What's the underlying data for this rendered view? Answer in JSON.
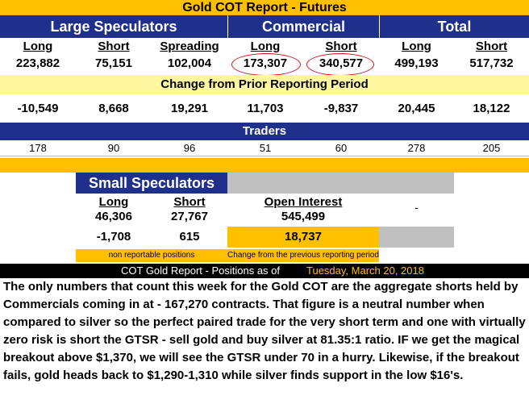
{
  "title": "Gold COT Report - Futures",
  "groups": {
    "large": "Large Speculators",
    "commercial": "Commercial",
    "total": "Total"
  },
  "columns": [
    "Long",
    "Short",
    "Spreading",
    "Long",
    "Short",
    "Long",
    "Short"
  ],
  "positions": [
    "223,882",
    "75,151",
    "102,004",
    "173,307",
    "340,577",
    "499,193",
    "517,732"
  ],
  "change_header": "Change from Prior Reporting Period",
  "changes": [
    "-10,549",
    "8,668",
    "19,291",
    "11,703",
    "-9,837",
    "20,445",
    "18,122"
  ],
  "traders_header": "Traders",
  "traders": [
    "178",
    "90",
    "96",
    "51",
    "60",
    "278",
    "205"
  ],
  "small": {
    "title": "Small Speculators",
    "long_label": "Long",
    "short_label": "Short",
    "long": "46,306",
    "short": "27,767",
    "long_change": "-1,708",
    "short_change": "615",
    "oi_label": "Open Interest",
    "oi": "545,499",
    "oi_change": "18,737",
    "dash": "-",
    "note_nonreportable": "non reportable positions",
    "note_change": "Change from the previous reporting period"
  },
  "footer": {
    "label": "COT Gold Report - Positions as of",
    "date": "Tuesday, March 20, 2018"
  },
  "commentary": "The only numbers that count this week for the Gold COT are the aggregate shorts held by Commercials coming in at - 167,270 contracts. That figure is a neutral number when compared to silver so the perfect paired trade for the very short term and one with virtually zero risk is short the GTSR - sell gold and buy silver at 81.35:1 ratio. IF we get the magical breakout above $1,370, we will see the GTSR under 70 in a hurry. Likewise, if the breakout fails, gold heads back to $1,290-1,310 while silver finds support in the low $16's.",
  "colors": {
    "navy": "#1f2f8c",
    "gold": "#ffc000",
    "light_yellow": "#fff7a0",
    "red": "#d01010"
  }
}
